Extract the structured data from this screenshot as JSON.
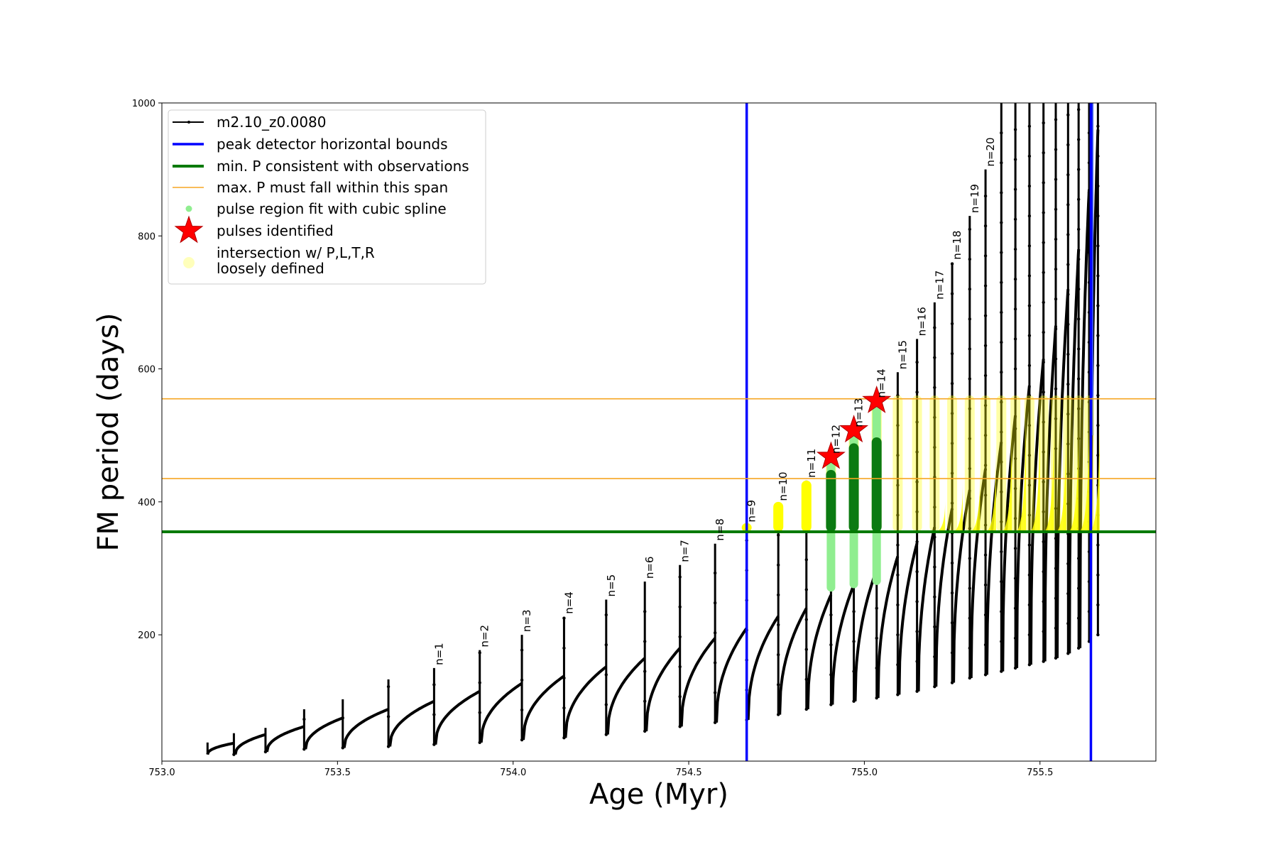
{
  "chart_data": {
    "type": "scatter",
    "xlabel": "Age (Myr)",
    "ylabel": "FM period (days)",
    "xlim": [
      753.0,
      755.83
    ],
    "ylim": [
      10,
      1000
    ],
    "x_ticks": [
      753.0,
      753.5,
      754.0,
      754.5,
      755.0,
      755.5
    ],
    "x_tick_labels": [
      "753.0",
      "753.5",
      "754.0",
      "754.5",
      "755.0",
      "755.5"
    ],
    "y_ticks": [
      200,
      400,
      600,
      800,
      1000
    ],
    "y_tick_labels": [
      "200",
      "400",
      "600",
      "800",
      "1000"
    ],
    "legend": {
      "placement": "upper-left",
      "entries": [
        {
          "label": "m2.10_z0.0080",
          "style": "black-line-dots"
        },
        {
          "label": "peak detector horizontal bounds",
          "style": "blue-line"
        },
        {
          "label": "min. P consistent with observations",
          "style": "green-line"
        },
        {
          "label": "max. P must fall within this span",
          "style": "orange-line"
        },
        {
          "label": "pulse region fit with cubic spline",
          "style": "lightgreen-dot"
        },
        {
          "label": "pulses identified",
          "style": "red-star"
        },
        {
          "label": "intersection w/ P,L,T,R",
          "label2": "loosely defined",
          "style": "yellow-circle"
        }
      ]
    },
    "vertical_bounds": [
      754.665,
      755.645
    ],
    "min_period": 355,
    "max_period_span": [
      435,
      555
    ],
    "pulses": [
      {
        "n": "n=1",
        "start": 753.775,
        "low": 35,
        "peak_before": 100,
        "spike": 150
      },
      {
        "n": "n=2",
        "start": 753.905,
        "low": 38,
        "peak_before": 115,
        "spike": 177
      },
      {
        "n": "n=3",
        "start": 754.025,
        "low": 42,
        "peak_before": 127,
        "spike": 200
      },
      {
        "n": "n=4",
        "start": 754.145,
        "low": 45,
        "peak_before": 138,
        "spike": 227
      },
      {
        "n": "n=5",
        "start": 754.265,
        "low": 50,
        "peak_before": 152,
        "spike": 253
      },
      {
        "n": "n=6",
        "start": 754.375,
        "low": 55,
        "peak_before": 165,
        "spike": 280
      },
      {
        "n": "n=7",
        "start": 754.475,
        "low": 62,
        "peak_before": 180,
        "spike": 305
      },
      {
        "n": "n=8",
        "start": 754.575,
        "low": 68,
        "peak_before": 195,
        "spike": 337
      },
      {
        "n": "n=9",
        "start": 754.665,
        "low": 72,
        "peak_before": 210,
        "spike": 365
      },
      {
        "n": "n=10",
        "start": 754.755,
        "low": 80,
        "peak_before": 228,
        "spike": 397
      },
      {
        "n": "n=11",
        "start": 754.835,
        "low": 88,
        "peak_before": 240,
        "spike": 432
      },
      {
        "n": "n=12",
        "start": 754.905,
        "low": 95,
        "peak_before": 260,
        "spike": 468
      },
      {
        "n": "n=13",
        "start": 754.97,
        "low": 100,
        "peak_before": 275,
        "spike": 508
      },
      {
        "n": "n=14",
        "start": 755.035,
        "low": 105,
        "peak_before": 298,
        "spike": 552
      },
      {
        "n": "n=15",
        "start": 755.095,
        "low": 110,
        "peak_before": 318,
        "spike": 595
      },
      {
        "n": "n=16",
        "start": 755.15,
        "low": 115,
        "peak_before": 338,
        "spike": 645
      },
      {
        "n": "n=17",
        "start": 755.2,
        "low": 122,
        "peak_before": 362,
        "spike": 700
      },
      {
        "n": "n=18",
        "start": 755.25,
        "low": 128,
        "peak_before": 390,
        "spike": 760
      },
      {
        "n": "n=19",
        "start": 755.3,
        "low": 135,
        "peak_before": 418,
        "spike": 830
      },
      {
        "n": "n=20",
        "start": 755.345,
        "low": 140,
        "peak_before": 450,
        "spike": 900
      },
      {
        "n": "",
        "start": 755.39,
        "low": 145,
        "peak_before": 490,
        "spike": 1000
      },
      {
        "n": "",
        "start": 755.43,
        "low": 150,
        "peak_before": 530,
        "spike": 1000
      },
      {
        "n": "",
        "start": 755.47,
        "low": 155,
        "peak_before": 575,
        "spike": 1000
      },
      {
        "n": "",
        "start": 755.51,
        "low": 160,
        "peak_before": 615,
        "spike": 1000
      },
      {
        "n": "",
        "start": 755.545,
        "low": 165,
        "peak_before": 665,
        "spike": 1000
      },
      {
        "n": "",
        "start": 755.58,
        "low": 172,
        "peak_before": 720,
        "spike": 1000
      },
      {
        "n": "",
        "start": 755.61,
        "low": 180,
        "peak_before": 780,
        "spike": 1000
      },
      {
        "n": "",
        "start": 755.64,
        "low": 190,
        "peak_before": 870,
        "spike": 1000
      },
      {
        "n": "",
        "start": 755.665,
        "low": 200,
        "peak_before": 960,
        "spike": 1000
      }
    ],
    "early_pulses": [
      {
        "start": 753.205,
        "low": 20,
        "peak_before": 37,
        "spike": 52
      },
      {
        "start": 753.295,
        "low": 24,
        "peak_before": 50,
        "spike": 60
      },
      {
        "start": 753.405,
        "low": 28,
        "peak_before": 62,
        "spike": 88
      },
      {
        "start": 753.515,
        "low": 30,
        "peak_before": 75,
        "spike": 103
      },
      {
        "start": 753.645,
        "low": 32,
        "peak_before": 88,
        "spike": 133
      }
    ],
    "track_start": {
      "x": 753.13,
      "low": 20,
      "spike": 38
    },
    "identified_pulses": [
      {
        "x": 754.905,
        "y": 468
      },
      {
        "x": 754.97,
        "y": 508
      },
      {
        "x": 755.035,
        "y": 552
      }
    ],
    "spline_pulse_ages": [
      754.905,
      754.97,
      755.035
    ]
  }
}
